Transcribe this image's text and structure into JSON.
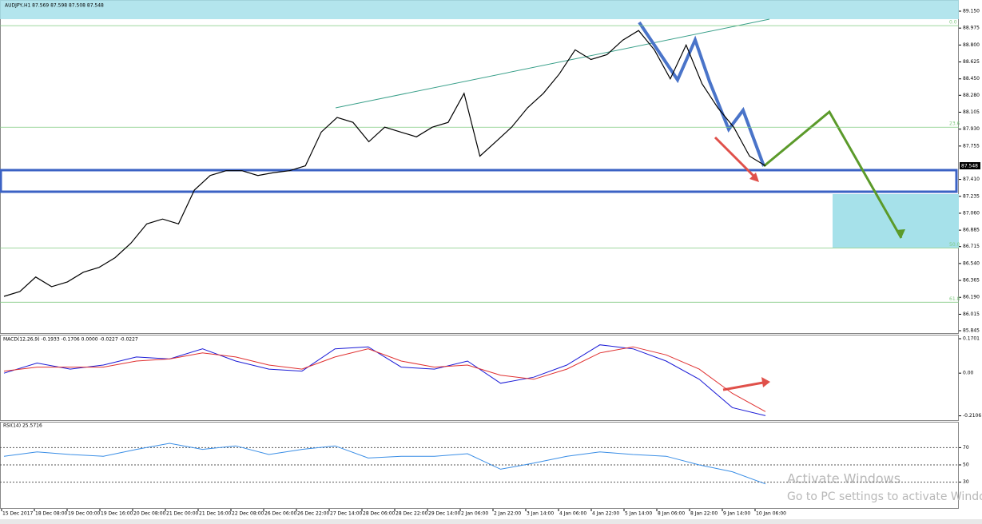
{
  "header": {
    "symbol": "AUDJPY,H1 87.569 87.598 87.508 87.548",
    "last_price": "87.548"
  },
  "watermark": {
    "title": "Activate Windows",
    "subtitle": "Go to PC settings to activate Windows"
  },
  "time_axis": {
    "labels": [
      "15 Dec 2017",
      "18 Dec 08:00",
      "19 Dec 00:00",
      "19 Dec 16:00",
      "20 Dec 08:00",
      "21 Dec 00:00",
      "21 Dec 16:00",
      "22 Dec 08:00",
      "26 Dec 06:00",
      "26 Dec 22:00",
      "27 Dec 14:00",
      "28 Dec 06:00",
      "28 Dec 22:00",
      "29 Dec 14:00",
      "2 Jan 06:00",
      "2 Jan 22:00",
      "3 Jan 14:00",
      "4 Jan 06:00",
      "4 Jan 22:00",
      "5 Jan 14:00",
      "8 Jan 06:00",
      "8 Jan 22:00",
      "9 Jan 14:00",
      "10 Jan 06:00"
    ]
  },
  "chart_data": [
    {
      "type": "line",
      "title": "AUDJPY,H1",
      "series": [
        {
          "name": "AUDJPY",
          "color": "#000000",
          "values": [
            86.2,
            86.25,
            86.4,
            86.3,
            86.35,
            86.45,
            86.5,
            86.6,
            86.75,
            86.95,
            87.0,
            86.95,
            87.3,
            87.45,
            87.5,
            87.5,
            87.45,
            87.48,
            87.5,
            87.55,
            87.9,
            88.05,
            88.0,
            87.8,
            87.95,
            87.9,
            87.85,
            87.95,
            88.0,
            88.3,
            87.65,
            87.8,
            87.95,
            88.15,
            88.3,
            88.5,
            88.75,
            88.65,
            88.7,
            88.85,
            88.95,
            88.75,
            88.45,
            88.8,
            88.4,
            88.15,
            87.95,
            87.65,
            87.55
          ]
        }
      ],
      "ylim": [
        85.845,
        89.15
      ],
      "yticks": [
        {
          "value": 89.15,
          "label": "89.150"
        },
        {
          "value": 88.975,
          "label": "88.975"
        },
        {
          "value": 88.8,
          "label": "88.800"
        },
        {
          "value": 88.625,
          "label": "88.625"
        },
        {
          "value": 88.45,
          "label": "88.450"
        },
        {
          "value": 88.28,
          "label": "88.280"
        },
        {
          "value": 88.105,
          "label": "88.105"
        },
        {
          "value": 87.93,
          "label": "87.930"
        },
        {
          "value": 87.755,
          "label": "87.755"
        },
        {
          "value": 87.41,
          "label": "87.410"
        },
        {
          "value": 87.235,
          "label": "87.235"
        },
        {
          "value": 87.06,
          "label": "87.060"
        },
        {
          "value": 86.885,
          "label": "86.885"
        },
        {
          "value": 86.715,
          "label": "86.715"
        },
        {
          "value": 86.54,
          "label": "86.540"
        },
        {
          "value": 86.365,
          "label": "86.365"
        },
        {
          "value": 86.19,
          "label": "86.190"
        },
        {
          "value": 86.015,
          "label": "86.015"
        },
        {
          "value": 85.845,
          "label": "85.845"
        }
      ],
      "fib_levels": [
        {
          "value": 89.0,
          "label": "0.0"
        },
        {
          "value": 87.95,
          "label": "23.6"
        },
        {
          "value": 86.7,
          "label": "50.0"
        },
        {
          "value": 86.14,
          "label": "61.8"
        }
      ],
      "fib_color": "#7fc97f"
    },
    {
      "type": "line",
      "title": "MACD(12,26,9) -0.1933 -0.1706 0.0000 -0.0227 -0.0227",
      "series": [
        {
          "name": "MACD",
          "color": "#1a1ad6",
          "values": [
            0.0,
            0.05,
            0.02,
            0.04,
            0.08,
            0.07,
            0.12,
            0.06,
            0.02,
            0.01,
            0.12,
            0.13,
            0.03,
            0.02,
            0.06,
            -0.05,
            -0.02,
            0.04,
            0.14,
            0.12,
            0.06,
            -0.03,
            -0.17,
            -0.21
          ]
        },
        {
          "name": "Signal",
          "color": "#e03030",
          "values": [
            0.01,
            0.03,
            0.03,
            0.03,
            0.06,
            0.07,
            0.1,
            0.08,
            0.04,
            0.02,
            0.08,
            0.12,
            0.06,
            0.03,
            0.04,
            -0.01,
            -0.03,
            0.02,
            0.1,
            0.13,
            0.09,
            0.02,
            -0.1,
            -0.19
          ]
        }
      ],
      "ylim": [
        -0.232,
        0.186
      ],
      "yticks": [
        0.1701,
        {
          "value": 0,
          "label": "0.00"
        },
        -0.2106
      ]
    },
    {
      "type": "line",
      "title": "RSI(14) 25.5716",
      "series": [
        {
          "name": "RSI",
          "color": "#3a8ee6",
          "values": [
            60,
            65,
            62,
            60,
            68,
            75,
            68,
            72,
            62,
            68,
            72,
            58,
            60,
            60,
            63,
            45,
            52,
            60,
            65,
            62,
            60,
            50,
            42,
            28
          ]
        }
      ],
      "ylim": [
        0,
        100
      ],
      "yticks": [
        70,
        50,
        30
      ]
    }
  ]
}
